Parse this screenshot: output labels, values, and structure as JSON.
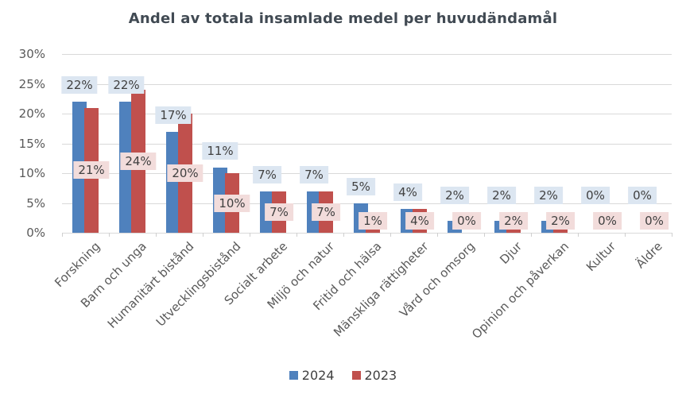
{
  "chart_data": {
    "type": "bar",
    "title": "Andel av totala insamlade medel per huvudändamål",
    "categories": [
      "Forskning",
      "Barn och unga",
      "Humanitärt bistånd",
      "Utvecklingsbistånd",
      "Socialt arbete",
      "Miljö och natur",
      "Fritid och hälsa",
      "Mänskliga rättigheter",
      "Vård och omsorg",
      "Djur",
      "Opinion och påverkan",
      "Kultur",
      "Äldre"
    ],
    "series": [
      {
        "name": "2024",
        "color": "#4F81BD",
        "label_bg": "#DCE6F1",
        "values": [
          22,
          22,
          17,
          11,
          7,
          7,
          5,
          4,
          2,
          2,
          2,
          0,
          0
        ],
        "labels": [
          "22%",
          "22%",
          "17%",
          "11%",
          "7%",
          "7%",
          "5%",
          "4%",
          "2%",
          "2%",
          "2%",
          "0%",
          "0%"
        ]
      },
      {
        "name": "2023",
        "color": "#C0504D",
        "label_bg": "#F2DCDB",
        "values": [
          21,
          24,
          20,
          10,
          7,
          7,
          1,
          4,
          0,
          2,
          2,
          0,
          0
        ],
        "labels": [
          "21%",
          "24%",
          "20%",
          "10%",
          "7%",
          "7%",
          "1%",
          "4%",
          "0%",
          "2%",
          "2%",
          "0%",
          "0%"
        ]
      }
    ],
    "y_ticks": [
      "0%",
      "5%",
      "10%",
      "15%",
      "20%",
      "25%",
      "30%"
    ],
    "ylim": [
      0,
      30
    ],
    "y_tick_step": 5,
    "grid": true,
    "legend_position": "bottom",
    "colors": {
      "grid": "#D9D9D9",
      "tick_text": "#595959",
      "label_text": "#404040",
      "title_text": "#414A53"
    }
  }
}
